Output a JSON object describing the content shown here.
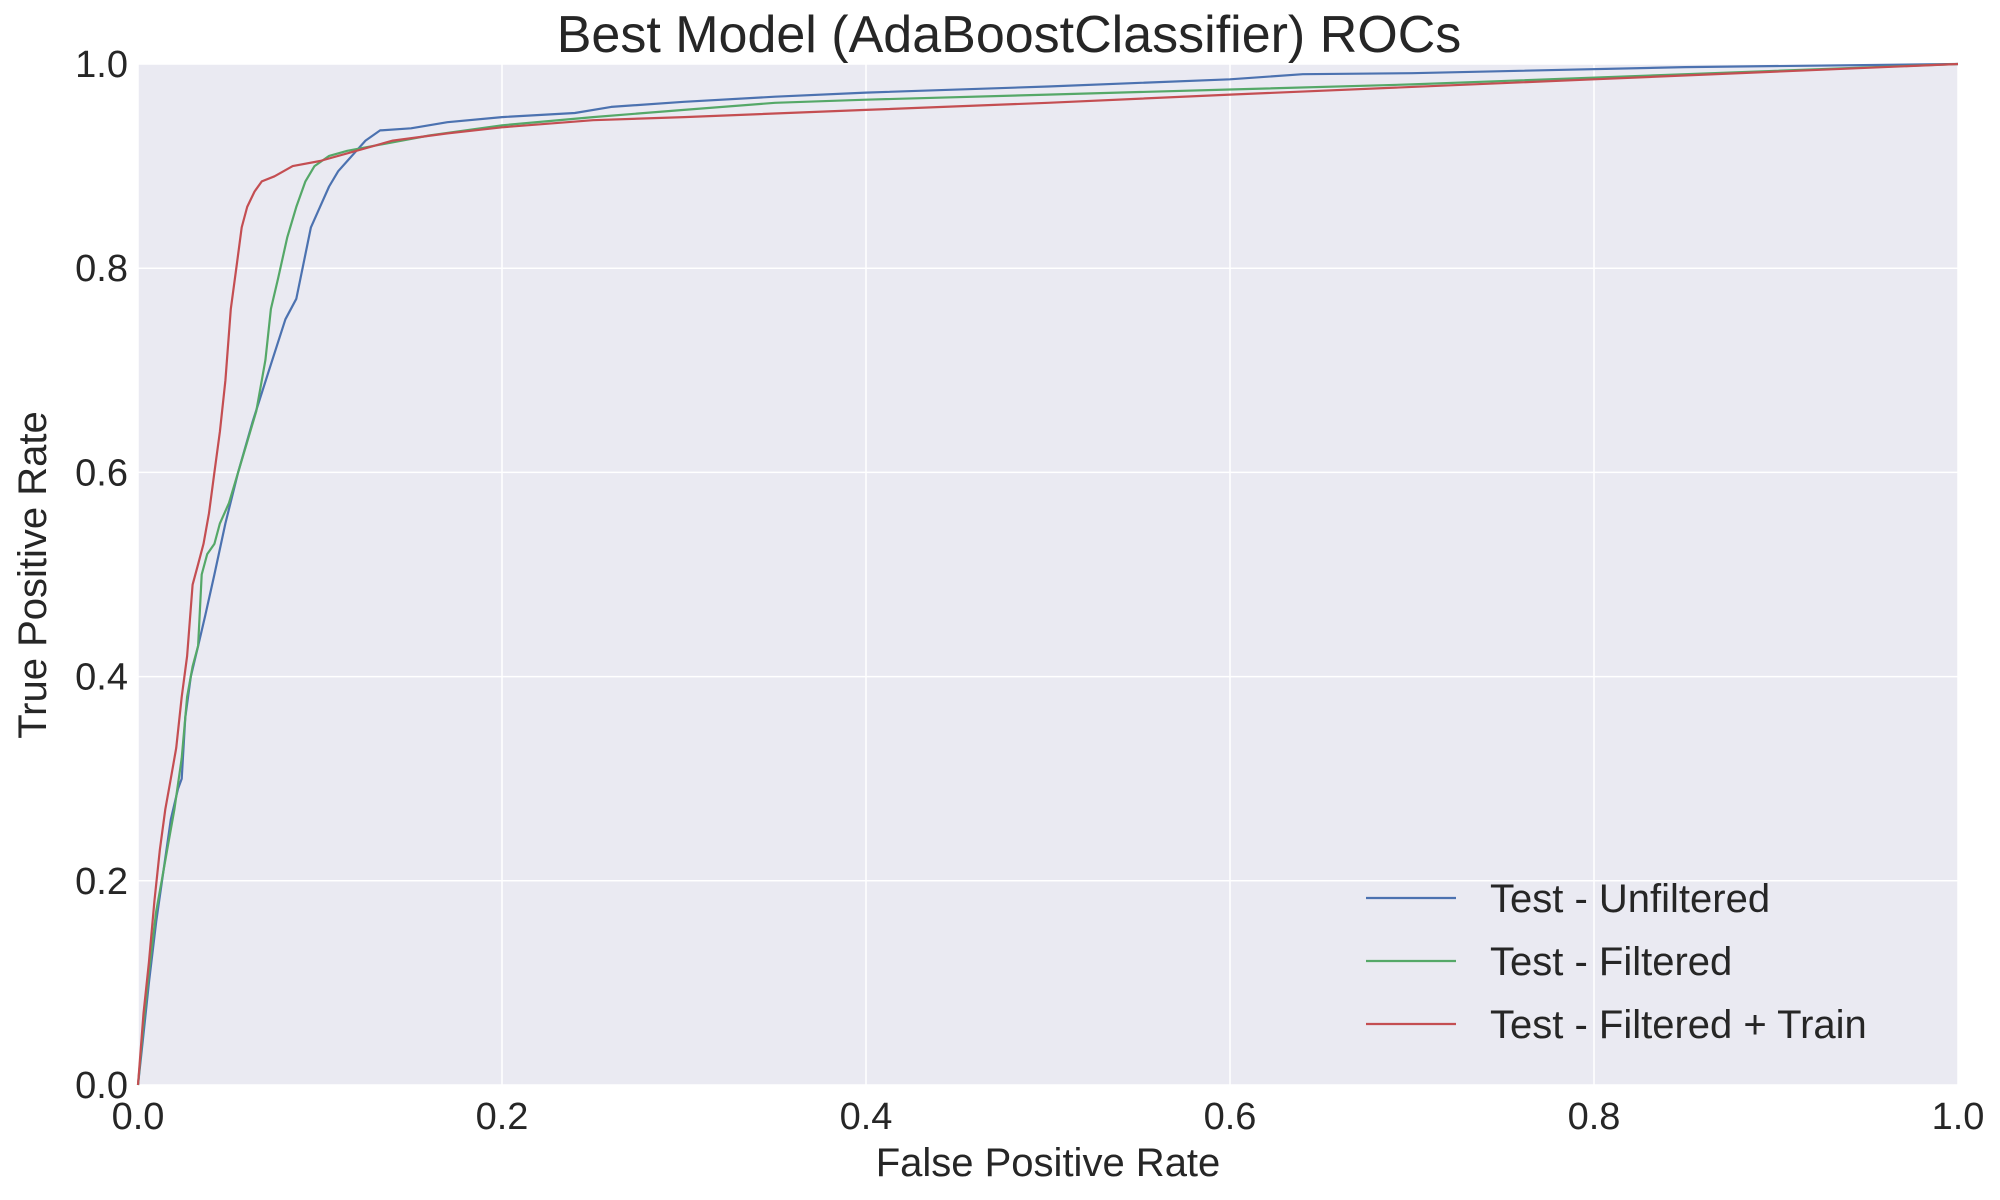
{
  "chart_data": {
    "type": "line",
    "title": "Best Model (AdaBoostClassifier) ROCs",
    "xlabel": "False Positive Rate",
    "ylabel": "True Positive Rate",
    "xlim": [
      0,
      1
    ],
    "ylim": [
      0,
      1
    ],
    "xticks": [
      "0.0",
      "0.2",
      "0.4",
      "0.6",
      "0.8",
      "1.0"
    ],
    "yticks": [
      "0.0",
      "0.2",
      "0.4",
      "0.6",
      "0.8",
      "1.0"
    ],
    "grid": true,
    "legend_position": "lower-right",
    "background": "#eaeaf2",
    "series": [
      {
        "name": "Test - Unfiltered",
        "color": "#4c72b0",
        "points": [
          [
            0,
            0
          ],
          [
            0.003,
            0.05
          ],
          [
            0.006,
            0.1
          ],
          [
            0.01,
            0.16
          ],
          [
            0.014,
            0.21
          ],
          [
            0.018,
            0.26
          ],
          [
            0.022,
            0.29
          ],
          [
            0.024,
            0.3
          ],
          [
            0.026,
            0.36
          ],
          [
            0.029,
            0.4
          ],
          [
            0.033,
            0.43
          ],
          [
            0.037,
            0.46
          ],
          [
            0.042,
            0.5
          ],
          [
            0.048,
            0.55
          ],
          [
            0.055,
            0.6
          ],
          [
            0.063,
            0.65
          ],
          [
            0.072,
            0.7
          ],
          [
            0.081,
            0.75
          ],
          [
            0.087,
            0.77
          ],
          [
            0.095,
            0.84
          ],
          [
            0.1,
            0.86
          ],
          [
            0.105,
            0.88
          ],
          [
            0.11,
            0.895
          ],
          [
            0.115,
            0.905
          ],
          [
            0.12,
            0.915
          ],
          [
            0.125,
            0.925
          ],
          [
            0.133,
            0.935
          ],
          [
            0.15,
            0.937
          ],
          [
            0.17,
            0.943
          ],
          [
            0.2,
            0.948
          ],
          [
            0.24,
            0.952
          ],
          [
            0.26,
            0.958
          ],
          [
            0.3,
            0.963
          ],
          [
            0.35,
            0.968
          ],
          [
            0.4,
            0.972
          ],
          [
            0.5,
            0.978
          ],
          [
            0.6,
            0.985
          ],
          [
            0.64,
            0.99
          ],
          [
            0.7,
            0.991
          ],
          [
            0.85,
            0.997
          ],
          [
            1,
            1
          ]
        ]
      },
      {
        "name": "Test - Filtered",
        "color": "#55a868",
        "points": [
          [
            0,
            0
          ],
          [
            0.003,
            0.06
          ],
          [
            0.006,
            0.11
          ],
          [
            0.01,
            0.17
          ],
          [
            0.013,
            0.2
          ],
          [
            0.016,
            0.23
          ],
          [
            0.02,
            0.27
          ],
          [
            0.024,
            0.32
          ],
          [
            0.027,
            0.38
          ],
          [
            0.03,
            0.41
          ],
          [
            0.033,
            0.43
          ],
          [
            0.035,
            0.5
          ],
          [
            0.038,
            0.52
          ],
          [
            0.042,
            0.53
          ],
          [
            0.045,
            0.55
          ],
          [
            0.05,
            0.57
          ],
          [
            0.055,
            0.6
          ],
          [
            0.06,
            0.63
          ],
          [
            0.065,
            0.66
          ],
          [
            0.07,
            0.71
          ],
          [
            0.073,
            0.76
          ],
          [
            0.077,
            0.79
          ],
          [
            0.082,
            0.83
          ],
          [
            0.087,
            0.86
          ],
          [
            0.092,
            0.885
          ],
          [
            0.097,
            0.9
          ],
          [
            0.105,
            0.91
          ],
          [
            0.115,
            0.915
          ],
          [
            0.13,
            0.92
          ],
          [
            0.16,
            0.93
          ],
          [
            0.2,
            0.94
          ],
          [
            0.25,
            0.948
          ],
          [
            0.3,
            0.955
          ],
          [
            0.35,
            0.962
          ],
          [
            0.4,
            0.965
          ],
          [
            0.5,
            0.97
          ],
          [
            0.6,
            0.975
          ],
          [
            0.7,
            0.98
          ],
          [
            0.85,
            0.99
          ],
          [
            1,
            1
          ]
        ]
      },
      {
        "name": "Test - Filtered + Train",
        "color": "#c44e52",
        "points": [
          [
            0,
            0
          ],
          [
            0.003,
            0.07
          ],
          [
            0.006,
            0.12
          ],
          [
            0.009,
            0.18
          ],
          [
            0.012,
            0.23
          ],
          [
            0.015,
            0.27
          ],
          [
            0.018,
            0.3
          ],
          [
            0.021,
            0.33
          ],
          [
            0.024,
            0.38
          ],
          [
            0.027,
            0.42
          ],
          [
            0.03,
            0.49
          ],
          [
            0.033,
            0.51
          ],
          [
            0.036,
            0.53
          ],
          [
            0.039,
            0.56
          ],
          [
            0.042,
            0.6
          ],
          [
            0.045,
            0.64
          ],
          [
            0.048,
            0.69
          ],
          [
            0.051,
            0.76
          ],
          [
            0.054,
            0.8
          ],
          [
            0.057,
            0.84
          ],
          [
            0.06,
            0.86
          ],
          [
            0.064,
            0.875
          ],
          [
            0.068,
            0.885
          ],
          [
            0.075,
            0.89
          ],
          [
            0.085,
            0.9
          ],
          [
            0.1,
            0.905
          ],
          [
            0.12,
            0.915
          ],
          [
            0.14,
            0.925
          ],
          [
            0.17,
            0.932
          ],
          [
            0.2,
            0.938
          ],
          [
            0.25,
            0.945
          ],
          [
            0.3,
            0.948
          ],
          [
            0.4,
            0.955
          ],
          [
            0.5,
            0.962
          ],
          [
            0.6,
            0.97
          ],
          [
            0.8,
            0.985
          ],
          [
            1,
            1
          ]
        ]
      }
    ]
  }
}
